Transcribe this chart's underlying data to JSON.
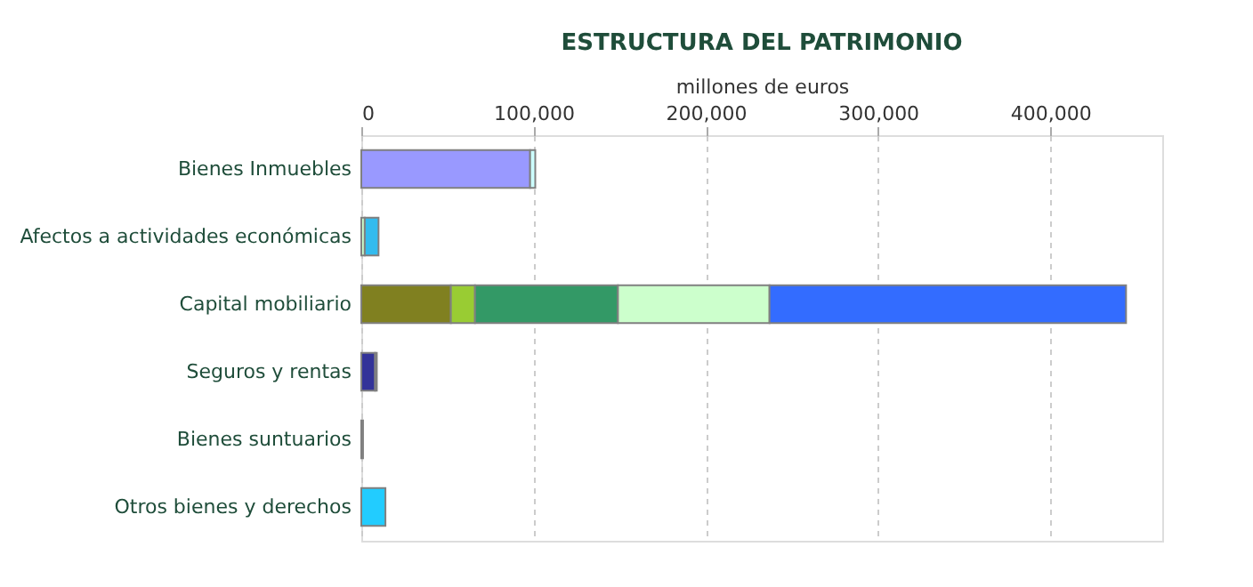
{
  "chart_data": {
    "type": "bar",
    "orientation": "horizontal",
    "stacked": true,
    "title": "ESTRUCTURA DEL PATRIMONIO",
    "xlabel": "millones de euros",
    "categories": [
      "Bienes Inmuebles",
      "Afectos a actividades económicas",
      "Capital mobiliario",
      "Seguros y rentas",
      "Bienes suntuarios",
      "Otros bienes y derechos"
    ],
    "series": [
      {
        "colors": [
          "#9999ff",
          "#ccffcc",
          "#808020",
          "#333399",
          "#336cff",
          "#22ccff"
        ],
        "values": [
          98000,
          2000,
          52000,
          8000,
          1000,
          14000
        ]
      },
      {
        "colors": [
          "#ccffff",
          "#33bbee",
          "#99cc33",
          "#ffcc66",
          null,
          null
        ],
        "values": [
          3000,
          8000,
          14000,
          1000,
          null,
          null
        ]
      },
      {
        "colors": [
          null,
          null,
          "#339966",
          null,
          null,
          null
        ],
        "values": [
          null,
          null,
          83000,
          null,
          null,
          null
        ]
      },
      {
        "colors": [
          null,
          null,
          "#ccffcc",
          null,
          null,
          null
        ],
        "values": [
          null,
          null,
          88000,
          null,
          null,
          null
        ]
      },
      {
        "colors": [
          null,
          null,
          "#336cff",
          null,
          null,
          null
        ],
        "values": [
          null,
          null,
          207000,
          null,
          null,
          null
        ]
      }
    ],
    "xlim": [
      0,
      465000
    ],
    "xticks": [
      0,
      {
        "value": 100000,
        "label": "100,000"
      },
      {
        "value": 200000,
        "label": "200,000"
      },
      {
        "value": 300000,
        "label": "300,000"
      },
      {
        "value": 400000,
        "label": "400,000"
      }
    ],
    "grid": "x"
  }
}
